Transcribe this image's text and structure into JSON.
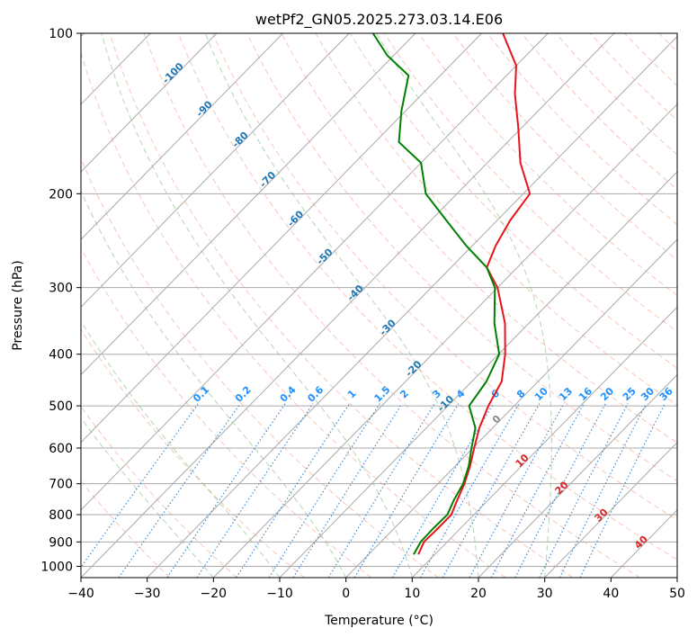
{
  "chart_data": {
    "type": "line",
    "title": "wetPf2_GN05.2025.273.03.14.E06",
    "xlabel": "Temperature (°C)",
    "ylabel": "Pressure (hPa)",
    "xlim": [
      -40,
      50
    ],
    "ylim": [
      1050,
      100
    ],
    "y_scale": "log",
    "grid": true,
    "x_ticks": [
      -40,
      -30,
      -20,
      -10,
      0,
      10,
      20,
      30,
      40,
      50
    ],
    "y_ticks": [
      100,
      200,
      300,
      400,
      500,
      600,
      700,
      800,
      900,
      1000
    ],
    "series": [
      {
        "color": "#e8141c",
        "points": [
          {
            "p": 950,
            "t": 7.5
          },
          {
            "p": 900,
            "t": 6.5
          },
          {
            "p": 850,
            "t": 6.6
          },
          {
            "p": 800,
            "t": 6.6
          },
          {
            "p": 750,
            "t": 5.3
          },
          {
            "p": 700,
            "t": 4.0
          },
          {
            "p": 650,
            "t": 2.3
          },
          {
            "p": 600,
            "t": 0.2
          },
          {
            "p": 550,
            "t": -2.0
          },
          {
            "p": 500,
            "t": -3.9
          },
          {
            "p": 450,
            "t": -5.5
          },
          {
            "p": 400,
            "t": -9.0
          },
          {
            "p": 350,
            "t": -13.6
          },
          {
            "p": 300,
            "t": -20.0
          },
          {
            "p": 275,
            "t": -24.6
          },
          {
            "p": 250,
            "t": -26.5
          },
          {
            "p": 225,
            "t": -28.0
          },
          {
            "p": 200,
            "t": -29.0
          },
          {
            "p": 175,
            "t": -35.0
          },
          {
            "p": 150,
            "t": -40.6
          },
          {
            "p": 130,
            "t": -46.0
          },
          {
            "p": 115,
            "t": -50.0
          },
          {
            "p": 100,
            "t": -56.8
          }
        ]
      },
      {
        "color": "#008000",
        "points": [
          {
            "p": 950,
            "t": 6.8
          },
          {
            "p": 900,
            "t": 6.0
          },
          {
            "p": 850,
            "t": 5.9
          },
          {
            "p": 800,
            "t": 6.0
          },
          {
            "p": 750,
            "t": 4.8
          },
          {
            "p": 700,
            "t": 3.8
          },
          {
            "p": 650,
            "t": 2.1
          },
          {
            "p": 600,
            "t": -0.2
          },
          {
            "p": 550,
            "t": -2.6
          },
          {
            "p": 500,
            "t": -6.8
          },
          {
            "p": 450,
            "t": -7.8
          },
          {
            "p": 400,
            "t": -9.9
          },
          {
            "p": 350,
            "t": -15.2
          },
          {
            "p": 300,
            "t": -20.4
          },
          {
            "p": 275,
            "t": -24.6
          },
          {
            "p": 250,
            "t": -31.0
          },
          {
            "p": 225,
            "t": -37.5
          },
          {
            "p": 200,
            "t": -44.7
          },
          {
            "p": 175,
            "t": -50.0
          },
          {
            "p": 160,
            "t": -56.4
          },
          {
            "p": 140,
            "t": -60.6
          },
          {
            "p": 120,
            "t": -64.8
          },
          {
            "p": 110,
            "t": -71.0
          },
          {
            "p": 100,
            "t": -76.4
          }
        ]
      }
    ],
    "mixing_ratio_labels": [
      "0.1",
      "0.2",
      "0.4",
      "0.6",
      "1",
      "1.5",
      "2",
      "3",
      "4",
      "6",
      "8",
      "10",
      "13",
      "16",
      "20",
      "25",
      "30",
      "36"
    ],
    "dry_adiabat_labels": [
      "-100",
      "-90",
      "-80",
      "-70",
      "-60",
      "-50",
      "-40",
      "-30",
      "-20",
      "-10"
    ],
    "moist_adiabat_labels": [
      "0",
      "10",
      "20",
      "30",
      "40"
    ]
  }
}
